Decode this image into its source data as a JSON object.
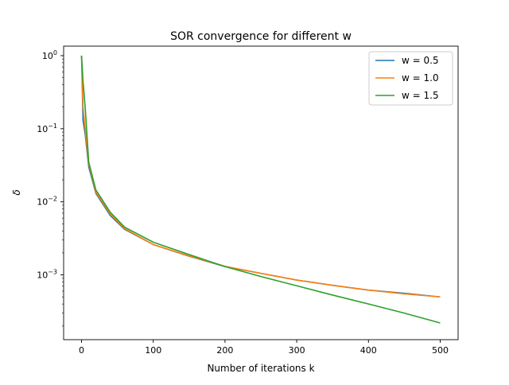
{
  "chart_data": {
    "type": "line",
    "title": "SOR convergence for different w",
    "xlabel": "Number of iterations k",
    "ylabel": "δ",
    "y_scale": "log",
    "xlim": [
      -25,
      525
    ],
    "ylim": [
      0.00013,
      1.35
    ],
    "x_ticks": [
      0,
      100,
      200,
      300,
      400,
      500
    ],
    "x_tick_labels": [
      "0",
      "100",
      "200",
      "300",
      "400",
      "500"
    ],
    "y_ticks": [
      1,
      0.1,
      0.01,
      0.001
    ],
    "y_tick_labels": [
      {
        "base": "10",
        "exp": "0"
      },
      {
        "base": "10",
        "exp": "−1"
      },
      {
        "base": "10",
        "exp": "−2"
      },
      {
        "base": "10",
        "exp": "−3"
      }
    ],
    "grid": false,
    "legend_position": "top-right",
    "series": [
      {
        "name": "w = 0.5",
        "color": "#1f77b4",
        "x": [
          0,
          2,
          5,
          10,
          20,
          40,
          60,
          100,
          150,
          200,
          250,
          300,
          350,
          400,
          450,
          500
        ],
        "y": [
          1.0,
          0.13,
          0.085,
          0.03,
          0.013,
          0.0065,
          0.0042,
          0.0026,
          0.0018,
          0.0013,
          0.00105,
          0.00085,
          0.00072,
          0.00062,
          0.00056,
          0.0005
        ]
      },
      {
        "name": "w = 1.0",
        "color": "#ff7f0e",
        "x": [
          0,
          2,
          5,
          10,
          20,
          40,
          60,
          100,
          150,
          200,
          250,
          300,
          350,
          400,
          450,
          500
        ],
        "y": [
          1.0,
          0.2,
          0.1,
          0.033,
          0.0135,
          0.0068,
          0.0043,
          0.0026,
          0.00182,
          0.00131,
          0.00105,
          0.00085,
          0.00072,
          0.00062,
          0.00055,
          0.0005
        ]
      },
      {
        "name": "w = 1.5",
        "color": "#2ca02c",
        "x": [
          0,
          2,
          5,
          10,
          20,
          40,
          60,
          100,
          150,
          200,
          250,
          300,
          350,
          400,
          450,
          500
        ],
        "y": [
          1.0,
          0.45,
          0.2,
          0.035,
          0.0145,
          0.0072,
          0.0045,
          0.0028,
          0.0019,
          0.0013,
          0.00095,
          0.00071,
          0.00053,
          0.0004,
          0.0003,
          0.00022
        ]
      }
    ]
  }
}
